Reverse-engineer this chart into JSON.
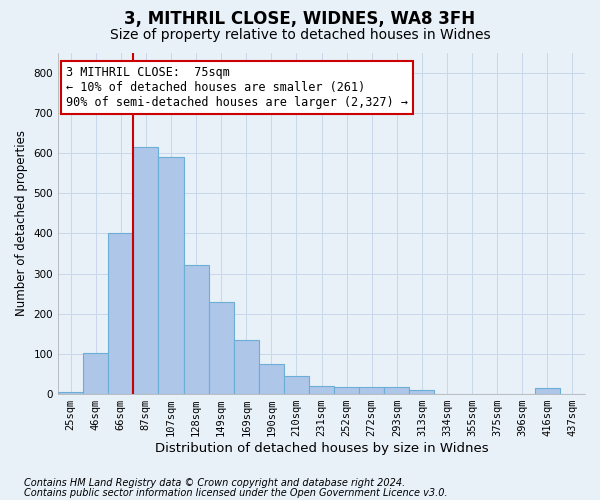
{
  "title1": "3, MITHRIL CLOSE, WIDNES, WA8 3FH",
  "title2": "Size of property relative to detached houses in Widnes",
  "xlabel": "Distribution of detached houses by size in Widnes",
  "ylabel": "Number of detached properties",
  "categories": [
    "25sqm",
    "46sqm",
    "66sqm",
    "87sqm",
    "107sqm",
    "128sqm",
    "149sqm",
    "169sqm",
    "190sqm",
    "210sqm",
    "231sqm",
    "252sqm",
    "272sqm",
    "293sqm",
    "313sqm",
    "334sqm",
    "355sqm",
    "375sqm",
    "396sqm",
    "416sqm",
    "437sqm"
  ],
  "values": [
    5,
    103,
    400,
    615,
    590,
    320,
    230,
    135,
    75,
    45,
    20,
    17,
    18,
    18,
    10,
    0,
    0,
    0,
    0,
    14,
    0
  ],
  "bar_color": "#aec6e8",
  "bar_edge_color": "#6baed6",
  "grid_color": "#c8d8ea",
  "background_color": "#e8f0f8",
  "vline_x": 2.5,
  "vline_color": "#cc0000",
  "annotation_text": "3 MITHRIL CLOSE:  75sqm\n← 10% of detached houses are smaller (261)\n90% of semi-detached houses are larger (2,327) →",
  "annotation_box_color": "#ffffff",
  "annotation_box_edgecolor": "#cc0000",
  "footnote1": "Contains HM Land Registry data © Crown copyright and database right 2024.",
  "footnote2": "Contains public sector information licensed under the Open Government Licence v3.0.",
  "ylim": [
    0,
    850
  ],
  "yticks": [
    0,
    100,
    200,
    300,
    400,
    500,
    600,
    700,
    800
  ],
  "title1_fontsize": 12,
  "title2_fontsize": 10,
  "xlabel_fontsize": 9.5,
  "ylabel_fontsize": 8.5,
  "tick_fontsize": 7.5,
  "annot_fontsize": 8.5
}
